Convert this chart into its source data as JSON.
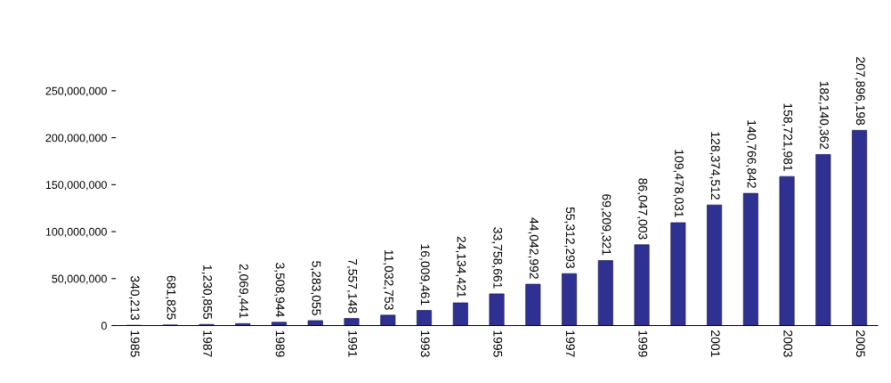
{
  "chart_data": {
    "type": "bar",
    "categories": [
      "1985",
      null,
      "1987",
      null,
      "1989",
      null,
      "1991",
      null,
      "1993",
      null,
      "1995",
      null,
      "1997",
      null,
      "1999",
      null,
      "2001",
      null,
      "2003",
      null,
      "2005"
    ],
    "values": [
      340213,
      681825,
      1230855,
      2069441,
      3508944,
      5283055,
      7557148,
      11032753,
      16009461,
      24134421,
      33758661,
      44042992,
      55312293,
      69209321,
      86047003,
      109478031,
      128374512,
      140766842,
      158721981,
      182140362,
      207896198
    ],
    "value_labels": [
      "340,213",
      "681,825",
      "1,230,855",
      "2,069,441",
      "3,508,944",
      "5,283,055",
      "7,557,148",
      "11,032,753",
      "16,009,461",
      "24,134,421",
      "33,758,661",
      "44,042,992",
      "55,312,293",
      "69,209,321",
      "86,047,003",
      "109,478,031",
      "128,374,512",
      "140,766,842",
      "158,721,981",
      "182,140,362",
      "207,896,198"
    ],
    "color": "#2e3192",
    "ylim": [
      0,
      250000000
    ],
    "yticks": [
      {
        "value": 0,
        "label": "0"
      },
      {
        "value": 50000000,
        "label": "50,000,000"
      },
      {
        "value": 100000000,
        "label": "100,000,000"
      },
      {
        "value": 150000000,
        "label": "150,000,000"
      },
      {
        "value": 200000000,
        "label": "200,000,000"
      },
      {
        "value": 250000000,
        "label": "250,000,000"
      }
    ],
    "grid": false
  }
}
